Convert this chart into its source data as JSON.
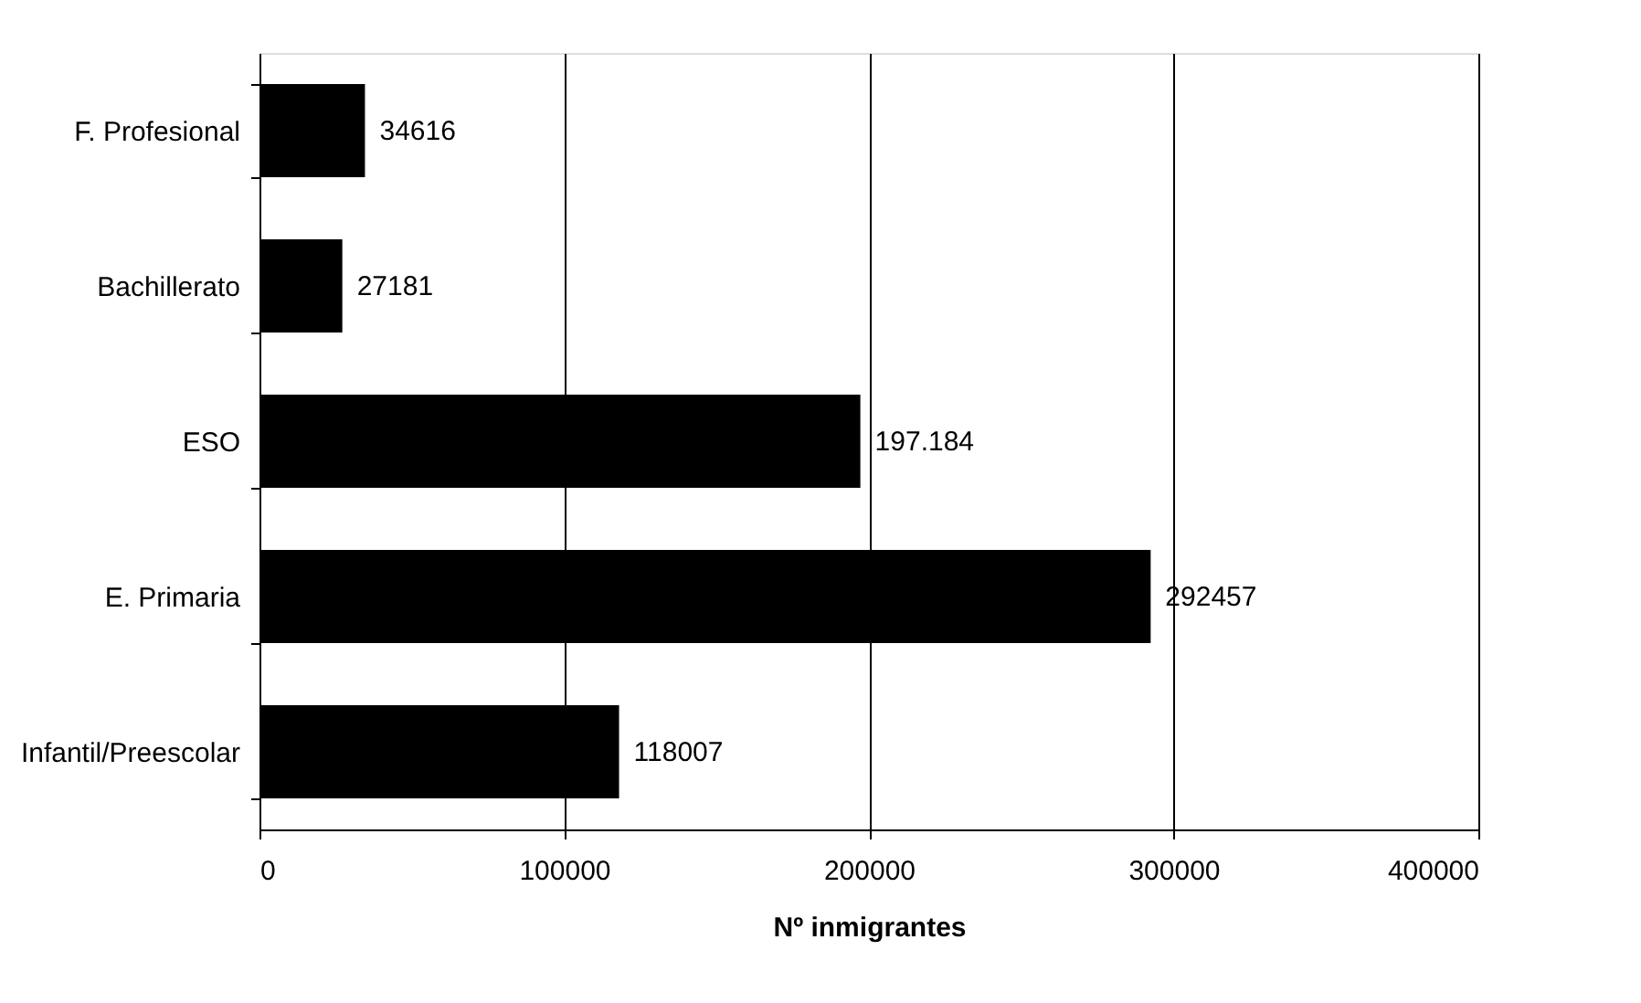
{
  "chart_data": {
    "type": "bar",
    "orientation": "horizontal",
    "xlabel": "Nº inmigrantes",
    "categories": [
      "F. Profesional",
      "Bachillerato",
      "ESO",
      "E. Primaria",
      "Infantil/Preescolar"
    ],
    "values": [
      34616,
      27181,
      197184,
      292457,
      118007
    ],
    "value_labels": [
      "34616",
      "27181",
      "197.184",
      "292457",
      "118007"
    ],
    "color": "#000000",
    "xlim": [
      0,
      400000
    ],
    "xticks": [
      0,
      100000,
      200000,
      300000,
      400000
    ],
    "grid": "x"
  }
}
